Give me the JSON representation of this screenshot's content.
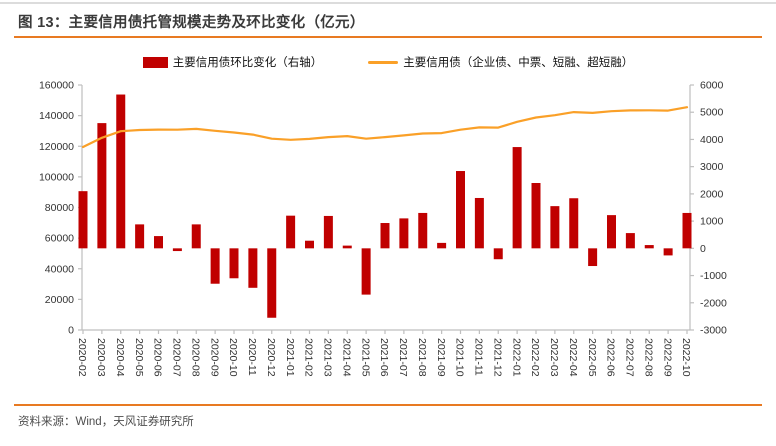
{
  "figure": {
    "title": "图 13：主要信用债托管规模走势及环比变化（亿元）",
    "source": "资料来源：Wind，天风证券研究所"
  },
  "legend": {
    "items": [
      {
        "label": "主要信用债环比变化（右轴）",
        "swatch": "bar-swatch",
        "color": "#c00000"
      },
      {
        "label": "主要信用债（企业债、中票、短融、超短融）",
        "swatch": "line-swatch",
        "color": "#faa028"
      }
    ]
  },
  "colors": {
    "bar": "#c00000",
    "line": "#faa028",
    "rule_orange": "#e87a22",
    "axis_gray": "#bfbfbf",
    "axis_text": "#333333"
  },
  "chart_data": {
    "type": "bar",
    "subtype": "combo-bar-line-dual-axis",
    "title": "主要信用债托管规模走势及环比变化（亿元）",
    "xlabel": "",
    "ylabel_left": "",
    "ylabel_right": "",
    "grid": false,
    "legend_position": "top",
    "categories": [
      "2020-02",
      "2020-03",
      "2020-04",
      "2020-05",
      "2020-06",
      "2020-07",
      "2020-08",
      "2020-09",
      "2020-10",
      "2020-11",
      "2020-12",
      "2021-01",
      "2021-02",
      "2021-03",
      "2021-04",
      "2021-05",
      "2021-06",
      "2021-07",
      "2021-08",
      "2021-09",
      "2021-10",
      "2021-11",
      "2021-12",
      "2022-01",
      "2022-02",
      "2022-03",
      "2022-04",
      "2022-05",
      "2022-06",
      "2022-07",
      "2022-08",
      "2022-09",
      "2022-10"
    ],
    "left_axis": {
      "min": 0,
      "max": 160000,
      "step": 20000
    },
    "right_axis": {
      "min": -3000,
      "max": 6000,
      "step": 1000
    },
    "series": [
      {
        "name": "主要信用债环比变化（右轴）",
        "type": "bar",
        "axis": "right",
        "color": "#c00000",
        "values": [
          2100,
          4600,
          5650,
          880,
          450,
          -100,
          880,
          -1300,
          -1100,
          -1450,
          -2550,
          1200,
          280,
          1190,
          100,
          -1700,
          930,
          1100,
          1300,
          200,
          2840,
          1850,
          -400,
          3720,
          2400,
          1550,
          1840,
          -650,
          1220,
          560,
          120,
          -260,
          1300
        ]
      },
      {
        "name": "主要信用债（企业债、中票、短融、超短融）",
        "type": "line",
        "axis": "left",
        "color": "#faa028",
        "values": [
          119500,
          125500,
          129800,
          130600,
          130900,
          130800,
          131300,
          130100,
          129000,
          127600,
          124900,
          124200,
          124800,
          126000,
          126600,
          124900,
          126000,
          127100,
          128300,
          128600,
          130800,
          132300,
          132200,
          136000,
          138800,
          140300,
          142300,
          141800,
          142900,
          143400,
          143500,
          143300,
          145500
        ]
      }
    ]
  }
}
